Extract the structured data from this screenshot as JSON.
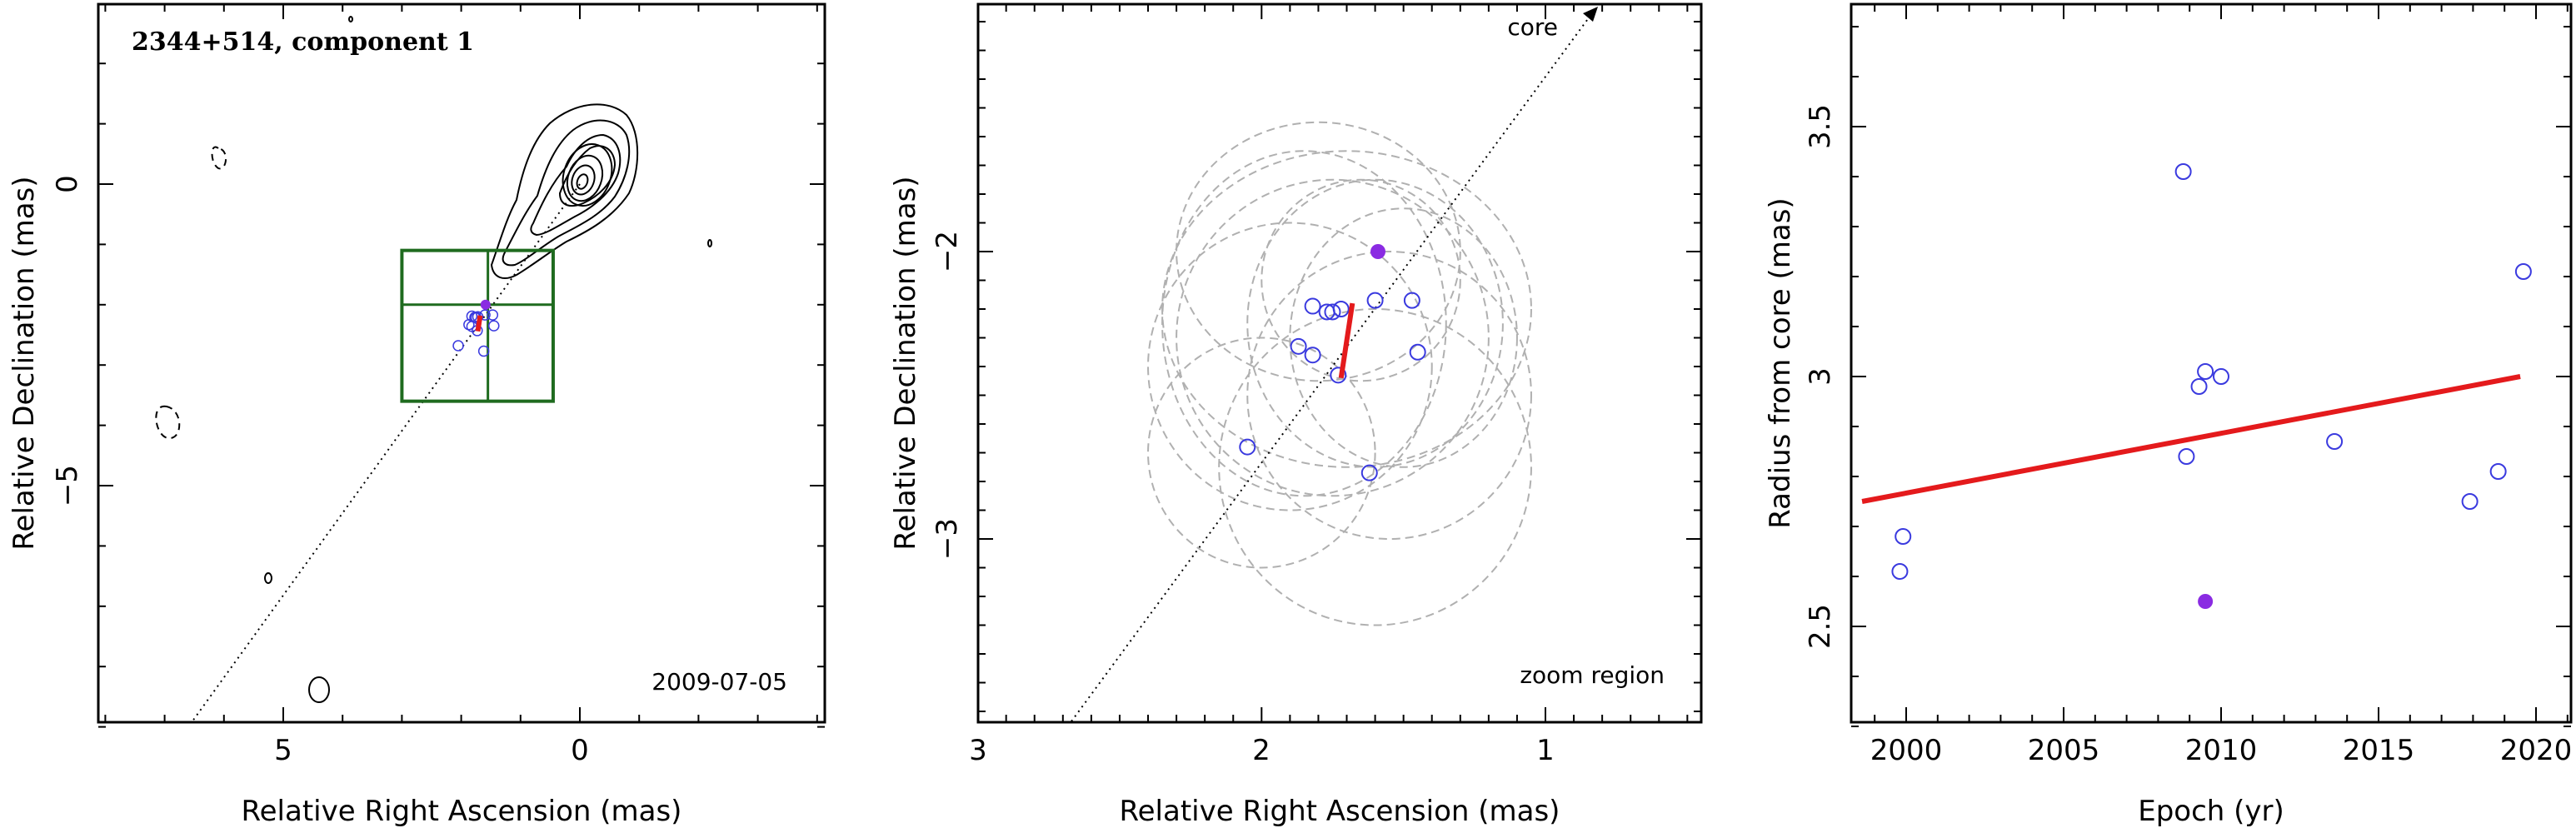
{
  "figure": {
    "panels": [
      {
        "title": "2344+514, component 1",
        "date_label": "2009-07-05",
        "xlabel": "Relative Right Ascension (mas)",
        "ylabel": "Relative Declination (mas)",
        "xticks": [
          "5",
          "0"
        ],
        "yticks": [
          "0",
          "−5"
        ]
      },
      {
        "xlabel": "Relative Right Ascension (mas)",
        "ylabel": "Relative Declination (mas)",
        "xticks": [
          "3",
          "2",
          "1"
        ],
        "yticks": [
          "−2",
          "−3"
        ],
        "core_label": "core",
        "zoom_label": "zoom region"
      },
      {
        "xlabel": "Epoch (yr)",
        "ylabel": "Radius from core (mas)",
        "xticks": [
          "2000",
          "2005",
          "2010",
          "2015",
          "2020"
        ],
        "yticks": [
          "2.5",
          "3",
          "3.5"
        ]
      }
    ]
  },
  "colors": {
    "open_marker": "#3a3adf",
    "filled_marker": "#8a2be2",
    "fit_line": "#e41a1c",
    "zoom_box": "#1f6b1f",
    "error_ellipse": "#b0b0b0",
    "contour": "#000000"
  },
  "chart_data": [
    {
      "type": "scatter",
      "title": "2344+514, component 1",
      "annotation": "2009-07-05",
      "xlabel": "Relative Right Ascension (mas)",
      "ylabel": "Relative Declination (mas)",
      "xlim": [
        8.0,
        -4.2
      ],
      "ylim": [
        -9.0,
        2.9
      ],
      "x_reversed": true,
      "background": "VLBI contour map (solid positive, dashed negative contours)",
      "zoom_box": {
        "x_range": [
          3.0,
          0.45
        ],
        "y_range": [
          -3.6,
          -1.1
        ],
        "crosshair": [
          1.55,
          -2.0
        ]
      },
      "jet_direction_line": {
        "from": [
          0.0,
          0.0
        ],
        "to": [
          6.6,
          -9.0
        ],
        "style": "dotted"
      },
      "points": [
        {
          "x": 2.05,
          "y": -2.68
        },
        {
          "x": 1.87,
          "y": -2.33
        },
        {
          "x": 1.82,
          "y": -2.19
        },
        {
          "x": 1.77,
          "y": -2.21
        },
        {
          "x": 1.75,
          "y": -2.21
        },
        {
          "x": 1.72,
          "y": -2.2
        },
        {
          "x": 1.82,
          "y": -2.36
        },
        {
          "x": 1.73,
          "y": -2.43
        },
        {
          "x": 1.6,
          "y": -2.17
        },
        {
          "x": 1.47,
          "y": -2.17
        },
        {
          "x": 1.45,
          "y": -2.35
        },
        {
          "x": 1.62,
          "y": -2.77
        }
      ],
      "highlight_point": {
        "x": 1.59,
        "y": -2.0
      },
      "fit_segment": {
        "from": [
          1.72,
          -2.44
        ],
        "to": [
          1.68,
          -2.18
        ]
      }
    },
    {
      "type": "scatter",
      "annotation": "zoom region",
      "core_label": "core",
      "xlabel": "Relative Right Ascension (mas)",
      "ylabel": "Relative Declination (mas)",
      "xlim": [
        3.0,
        0.45
      ],
      "ylim": [
        -3.6,
        -1.1
      ],
      "x_reversed": true,
      "jet_direction_line": {
        "style": "dotted",
        "arrow_to": "core"
      },
      "points": [
        {
          "x": 2.05,
          "y": -2.68
        },
        {
          "x": 1.87,
          "y": -2.33
        },
        {
          "x": 1.82,
          "y": -2.19
        },
        {
          "x": 1.77,
          "y": -2.21
        },
        {
          "x": 1.75,
          "y": -2.21
        },
        {
          "x": 1.72,
          "y": -2.2
        },
        {
          "x": 1.82,
          "y": -2.36
        },
        {
          "x": 1.73,
          "y": -2.43
        },
        {
          "x": 1.6,
          "y": -2.17
        },
        {
          "x": 1.47,
          "y": -2.17
        },
        {
          "x": 1.45,
          "y": -2.35
        },
        {
          "x": 1.62,
          "y": -2.77
        }
      ],
      "highlight_point": {
        "x": 1.59,
        "y": -2.0
      },
      "error_ellipses": [
        {
          "cx": 1.75,
          "cy": -2.3,
          "rx": 0.55,
          "ry": 0.55
        },
        {
          "cx": 1.7,
          "cy": -2.2,
          "rx": 0.65,
          "ry": 0.55
        },
        {
          "cx": 1.85,
          "cy": -2.25,
          "rx": 0.5,
          "ry": 0.6
        },
        {
          "cx": 1.6,
          "cy": -2.25,
          "rx": 0.45,
          "ry": 0.5
        },
        {
          "cx": 1.5,
          "cy": -2.3,
          "rx": 0.4,
          "ry": 0.45
        },
        {
          "cx": 1.65,
          "cy": -2.1,
          "rx": 0.35,
          "ry": 0.35
        },
        {
          "cx": 1.9,
          "cy": -2.4,
          "rx": 0.5,
          "ry": 0.5
        },
        {
          "cx": 1.6,
          "cy": -2.75,
          "rx": 0.55,
          "ry": 0.55
        },
        {
          "cx": 2.0,
          "cy": -2.7,
          "rx": 0.4,
          "ry": 0.4
        },
        {
          "cx": 1.8,
          "cy": -2.0,
          "rx": 0.5,
          "ry": 0.45
        },
        {
          "cx": 1.55,
          "cy": -2.5,
          "rx": 0.5,
          "ry": 0.5
        }
      ],
      "fit_segment": {
        "from": [
          1.72,
          -2.44
        ],
        "to": [
          1.68,
          -2.18
        ]
      }
    },
    {
      "type": "scatter",
      "xlabel": "Epoch (yr)",
      "ylabel": "Radius from core (mas)",
      "xlim": [
        1998,
        2021
      ],
      "ylim": [
        2.3,
        3.75
      ],
      "points": [
        {
          "x": 1999.8,
          "y": 2.61
        },
        {
          "x": 1999.9,
          "y": 2.68
        },
        {
          "x": 2008.8,
          "y": 3.41
        },
        {
          "x": 2008.9,
          "y": 2.84
        },
        {
          "x": 2009.3,
          "y": 2.98
        },
        {
          "x": 2009.5,
          "y": 3.01
        },
        {
          "x": 2010.0,
          "y": 3.0
        },
        {
          "x": 2013.6,
          "y": 2.87
        },
        {
          "x": 2017.9,
          "y": 2.75
        },
        {
          "x": 2018.8,
          "y": 2.81
        },
        {
          "x": 2019.6,
          "y": 3.21
        }
      ],
      "highlight_point": {
        "x": 2009.5,
        "y": 2.55
      },
      "fit_line": {
        "from": [
          1998.6,
          2.75
        ],
        "to": [
          2019.5,
          3.0
        ]
      }
    }
  ]
}
